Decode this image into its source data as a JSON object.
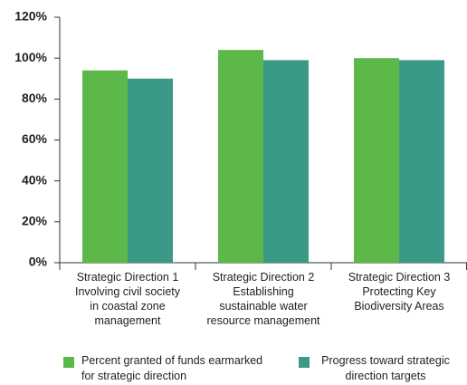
{
  "chart_data": {
    "type": "bar",
    "categories": [
      "Strategic Direction 1\nInvolving civil society\nin coastal zone\nmanagement",
      "Strategic Direction 2\nEstablishing\nsustainable water\nresource management",
      "Strategic Direction 3\nProtecting Key\nBiodiversity Areas"
    ],
    "series": [
      {
        "name": "Percent granted of funds earmarked\nfor strategic direction",
        "color": "#5cb848",
        "values": [
          94,
          104,
          100
        ]
      },
      {
        "name": "Progress toward strategic\ndirection targets",
        "color": "#3a9a87",
        "values": [
          90,
          99,
          99
        ]
      }
    ],
    "ylim": [
      0,
      120
    ],
    "yticks": [
      {
        "value": 0,
        "label": "0%"
      },
      {
        "value": 20,
        "label": "20%"
      },
      {
        "value": 40,
        "label": "40%"
      },
      {
        "value": 60,
        "label": "60%"
      },
      {
        "value": 80,
        "label": "80%"
      },
      {
        "value": 100,
        "label": "100%"
      },
      {
        "value": 120,
        "label": "120%"
      }
    ],
    "grid": false
  }
}
